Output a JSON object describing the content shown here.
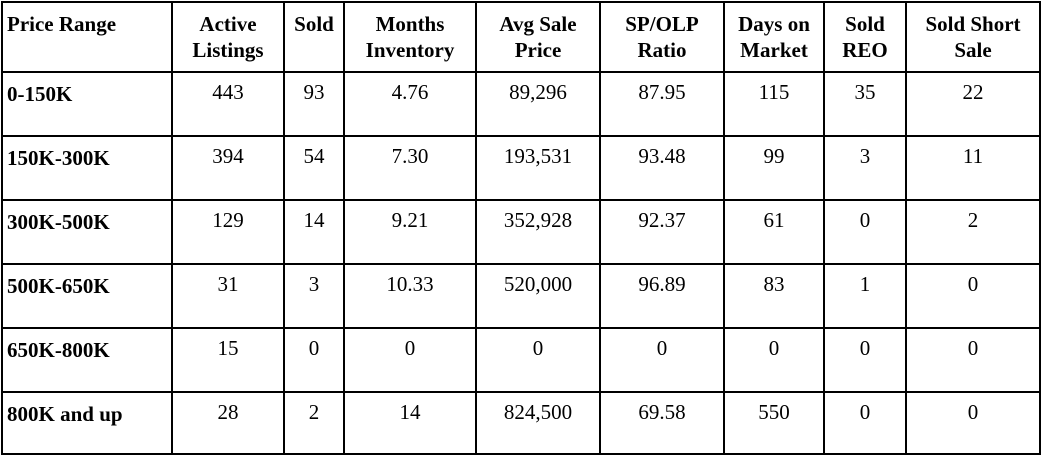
{
  "table": {
    "headers": [
      "Price Range",
      "Active Listings",
      "Sold",
      "Months Inventory",
      "Avg Sale Price",
      "SP/OLP Ratio",
      "Days on Market",
      "Sold REO",
      "Sold Short Sale"
    ],
    "rows": [
      [
        "0-150K",
        "443",
        "93",
        "4.76",
        "89,296",
        "87.95",
        "115",
        "35",
        "22"
      ],
      [
        "150K-300K",
        "394",
        "54",
        "7.30",
        "193,531",
        "93.48",
        "99",
        "3",
        "11"
      ],
      [
        "300K-500K",
        "129",
        "14",
        "9.21",
        "352,928",
        "92.37",
        "61",
        "0",
        "2"
      ],
      [
        "500K-650K",
        "31",
        "3",
        "10.33",
        "520,000",
        "96.89",
        "83",
        "1",
        "0"
      ],
      [
        "650K-800K",
        "15",
        "0",
        "0",
        "0",
        "0",
        "0",
        "0",
        "0"
      ],
      [
        "800K and up",
        "28",
        "2",
        "14",
        "824,500",
        "69.58",
        "550",
        "0",
        "0"
      ]
    ]
  }
}
